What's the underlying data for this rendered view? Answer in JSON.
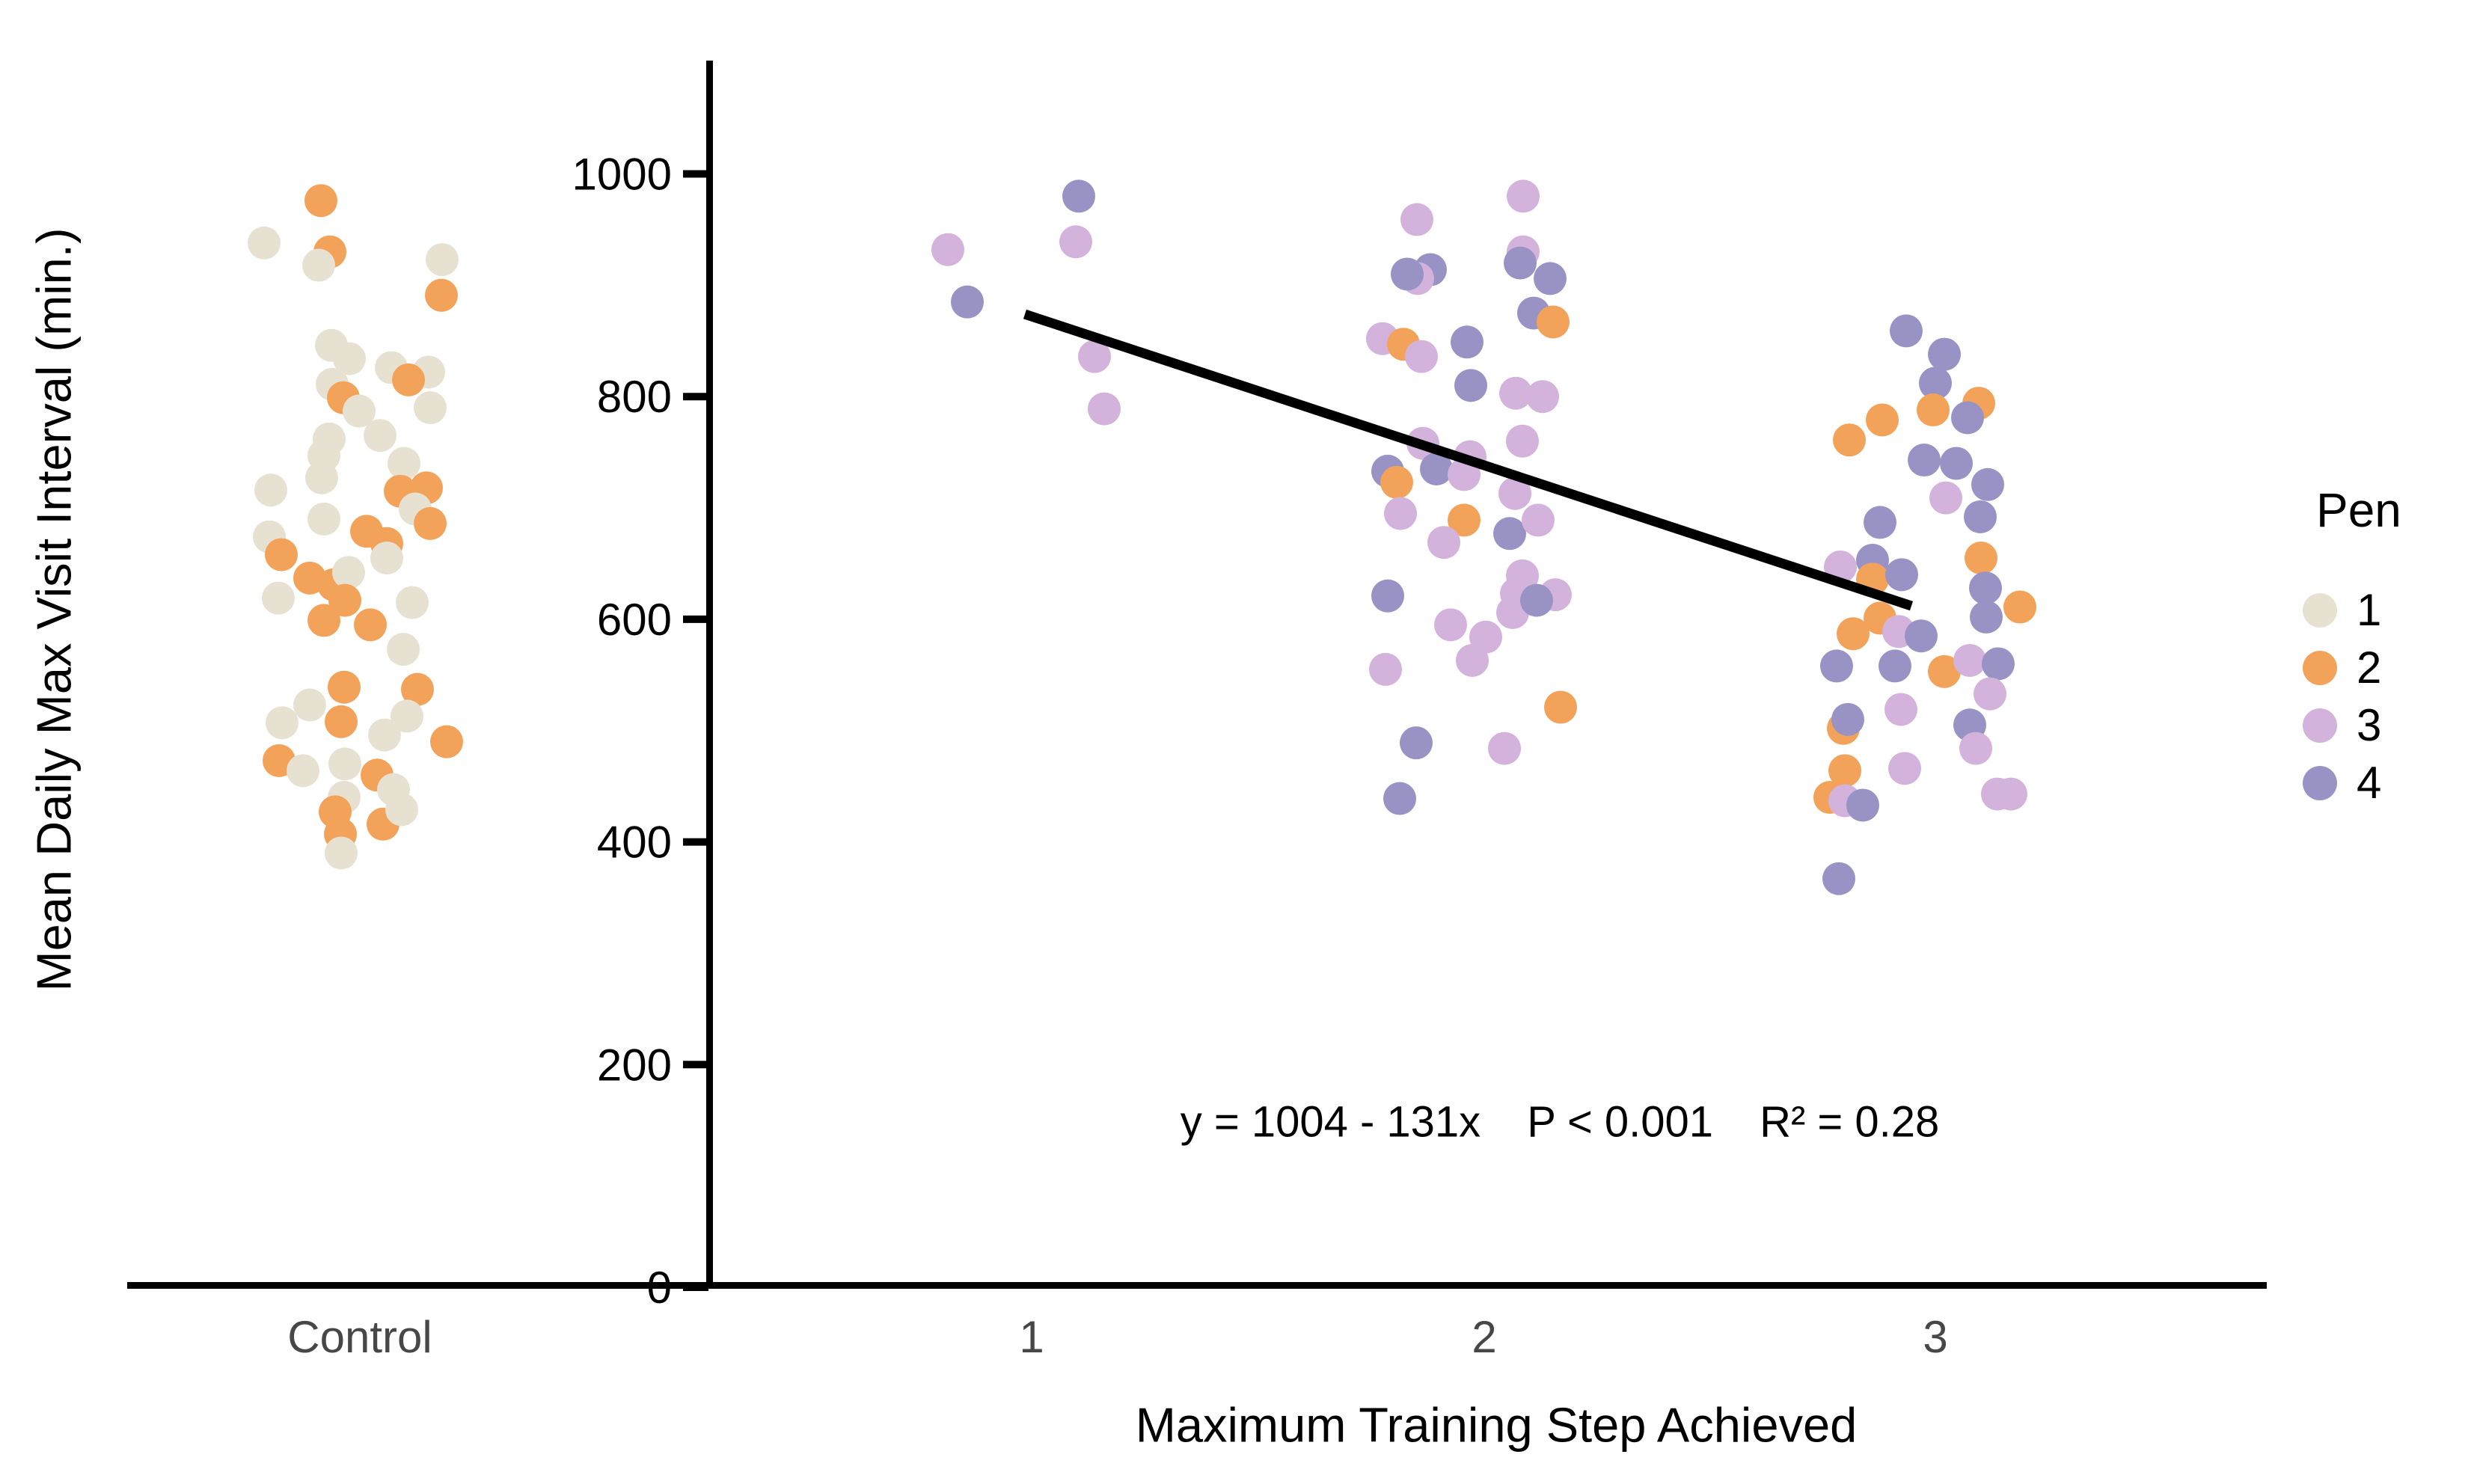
{
  "y_axis": {
    "label": "Mean Daily Max Visit Interval (min.)",
    "ticks": [
      0,
      200,
      400,
      600,
      800,
      1000
    ],
    "range": [
      0,
      1100
    ]
  },
  "x_axis": {
    "label": "Maximum Training Step Achieved",
    "categories": [
      "Control",
      "1",
      "2",
      "3"
    ]
  },
  "legend": {
    "title": "Pen",
    "entries": [
      {
        "label": "1",
        "color": "#E7E1D1"
      },
      {
        "label": "2",
        "color": "#F3A25A"
      },
      {
        "label": "3",
        "color": "#D3B2DC"
      },
      {
        "label": "4",
        "color": "#9893C4"
      }
    ]
  },
  "annotation": {
    "equation": "y = 1004 - 131x",
    "p_value": "P < 0.001",
    "r_squared": "R² = 0.28",
    "full_text": "y = 1004 - 131x   P < 0.001   R² = 0.28"
  },
  "chart_data": {
    "type": "scatter",
    "title": "",
    "xlabel": "Maximum Training Step Achieved",
    "ylabel": "Mean Daily Max Visit Interval (min.)",
    "ylim": [
      0,
      1100
    ],
    "grid": false,
    "legend_position": "right",
    "pen_colors": {
      "1": "#E7E1D1",
      "2": "#F3A25A",
      "3": "#D3B2DC",
      "4": "#9893C4"
    },
    "regression_line": {
      "x1": 0.985,
      "y1": 874,
      "x2": 2.947,
      "y2": 612,
      "color": "#000000",
      "equation": "y = 1004 - 131x",
      "p": "P < 0.001",
      "r2": 0.28
    },
    "points_format": [
      "group",
      "pen",
      "y_value_min",
      "x_offset_px"
    ],
    "points": [
      [
        "Control",
        2,
        976,
        -52
      ],
      [
        "Control",
        1,
        938,
        -128
      ],
      [
        "Control",
        2,
        930,
        -40
      ],
      [
        "Control",
        1,
        918,
        -55
      ],
      [
        "Control",
        1,
        923,
        110
      ],
      [
        "Control",
        2,
        891,
        109
      ],
      [
        "Control",
        1,
        846,
        -38
      ],
      [
        "Control",
        1,
        834,
        -14
      ],
      [
        "Control",
        1,
        826,
        42
      ],
      [
        "Control",
        1,
        822,
        92
      ],
      [
        "Control",
        2,
        815,
        65
      ],
      [
        "Control",
        1,
        811,
        -37
      ],
      [
        "Control",
        2,
        799,
        -22
      ],
      [
        "Control",
        1,
        790,
        94
      ],
      [
        "Control",
        1,
        787,
        -1
      ],
      [
        "Control",
        1,
        765,
        27
      ],
      [
        "Control",
        1,
        762,
        -41
      ],
      [
        "Control",
        1,
        747,
        -48
      ],
      [
        "Control",
        1,
        740,
        59
      ],
      [
        "Control",
        1,
        727,
        -51
      ],
      [
        "Control",
        1,
        716,
        -119
      ],
      [
        "Control",
        2,
        715,
        54
      ],
      [
        "Control",
        2,
        718,
        89
      ],
      [
        "Control",
        1,
        699,
        74
      ],
      [
        "Control",
        1,
        690,
        -48
      ],
      [
        "Control",
        1,
        674,
        -121
      ],
      [
        "Control",
        2,
        658,
        -105
      ],
      [
        "Control",
        2,
        679,
        9
      ],
      [
        "Control",
        2,
        668,
        36
      ],
      [
        "Control",
        1,
        655,
        36
      ],
      [
        "Control",
        2,
        686,
        94
      ],
      [
        "Control",
        1,
        619,
        -109
      ],
      [
        "Control",
        2,
        637,
        -67
      ],
      [
        "Control",
        2,
        631,
        -35
      ],
      [
        "Control",
        1,
        642,
        -15
      ],
      [
        "Control",
        2,
        617,
        -20
      ],
      [
        "Control",
        2,
        599,
        -48
      ],
      [
        "Control",
        2,
        595,
        14
      ],
      [
        "Control",
        1,
        615,
        70
      ],
      [
        "Control",
        1,
        573,
        58
      ],
      [
        "Control",
        2,
        539,
        -21
      ],
      [
        "Control",
        2,
        508,
        -25
      ],
      [
        "Control",
        1,
        523,
        -67
      ],
      [
        "Control",
        1,
        507,
        -104
      ],
      [
        "Control",
        2,
        537,
        77
      ],
      [
        "Control",
        1,
        513,
        63
      ],
      [
        "Control",
        1,
        496,
        33
      ],
      [
        "Control",
        2,
        490,
        116
      ],
      [
        "Control",
        2,
        473,
        -108
      ],
      [
        "Control",
        1,
        464,
        -76
      ],
      [
        "Control",
        1,
        470,
        -20
      ],
      [
        "Control",
        2,
        460,
        23
      ],
      [
        "Control",
        1,
        447,
        45
      ],
      [
        "Control",
        1,
        440,
        -21
      ],
      [
        "Control",
        2,
        427,
        -33
      ],
      [
        "Control",
        2,
        416,
        31
      ],
      [
        "Control",
        1,
        429,
        56
      ],
      [
        "Control",
        2,
        407,
        -26
      ],
      [
        "Control",
        1,
        390,
        -25
      ],
      [
        "1",
        4,
        980,
        63
      ],
      [
        "1",
        3,
        939,
        59
      ],
      [
        "1",
        3,
        932,
        -112
      ],
      [
        "1",
        4,
        885,
        -86
      ],
      [
        "1",
        3,
        836,
        84
      ],
      [
        "1",
        3,
        789,
        97
      ],
      [
        "2",
        3,
        980,
        52
      ],
      [
        "2",
        3,
        959,
        -90
      ],
      [
        "2",
        3,
        930,
        52
      ],
      [
        "2",
        4,
        920,
        48
      ],
      [
        "2",
        4,
        906,
        88
      ],
      [
        "2",
        4,
        914,
        -72
      ],
      [
        "2",
        3,
        906,
        -89
      ],
      [
        "2",
        4,
        910,
        -103
      ],
      [
        "2",
        4,
        875,
        66
      ],
      [
        "2",
        2,
        867,
        92
      ],
      [
        "2",
        3,
        852,
        -136
      ],
      [
        "2",
        2,
        847,
        -108
      ],
      [
        "2",
        3,
        836,
        -84
      ],
      [
        "2",
        4,
        849,
        -23
      ],
      [
        "2",
        4,
        810,
        -18
      ],
      [
        "2",
        3,
        803,
        42
      ],
      [
        "2",
        3,
        800,
        78
      ],
      [
        "2",
        3,
        758,
        -82
      ],
      [
        "2",
        3,
        746,
        -19
      ],
      [
        "2",
        3,
        760,
        51
      ],
      [
        "2",
        4,
        733,
        -129
      ],
      [
        "2",
        2,
        723,
        -117
      ],
      [
        "2",
        4,
        735,
        -64
      ],
      [
        "2",
        3,
        730,
        -27
      ],
      [
        "2",
        3,
        695,
        -112
      ],
      [
        "2",
        2,
        689,
        -27
      ],
      [
        "2",
        3,
        669,
        -54
      ],
      [
        "2",
        4,
        677,
        34
      ],
      [
        "2",
        3,
        689,
        72
      ],
      [
        "2",
        3,
        713,
        41
      ],
      [
        "2",
        3,
        595,
        -45
      ],
      [
        "2",
        4,
        621,
        -129
      ],
      [
        "2",
        3,
        639,
        51
      ],
      [
        "2",
        3,
        623,
        43
      ],
      [
        "2",
        3,
        606,
        38
      ],
      [
        "2",
        3,
        622,
        95
      ],
      [
        "2",
        4,
        617,
        70
      ],
      [
        "2",
        3,
        584,
        2
      ],
      [
        "2",
        3,
        563,
        -16
      ],
      [
        "2",
        3,
        555,
        -132
      ],
      [
        "2",
        2,
        521,
        102
      ],
      [
        "2",
        4,
        489,
        -91
      ],
      [
        "2",
        3,
        484,
        27
      ],
      [
        "2",
        4,
        439,
        -113
      ],
      [
        "3",
        4,
        859,
        -39
      ],
      [
        "3",
        4,
        838,
        12
      ],
      [
        "3",
        4,
        812,
        0
      ],
      [
        "3",
        2,
        794,
        58
      ],
      [
        "3",
        2,
        788,
        -3
      ],
      [
        "3",
        4,
        781,
        43
      ],
      [
        "3",
        2,
        779,
        -71
      ],
      [
        "3",
        2,
        761,
        -115
      ],
      [
        "3",
        4,
        743,
        -15
      ],
      [
        "3",
        4,
        740,
        28
      ],
      [
        "3",
        4,
        721,
        70
      ],
      [
        "3",
        3,
        709,
        14
      ],
      [
        "3",
        4,
        692,
        60
      ],
      [
        "3",
        4,
        687,
        -74
      ],
      [
        "3",
        3,
        647,
        -127
      ],
      [
        "3",
        4,
        653,
        -84
      ],
      [
        "3",
        2,
        636,
        -84
      ],
      [
        "3",
        4,
        640,
        -45
      ],
      [
        "3",
        2,
        655,
        61
      ],
      [
        "3",
        4,
        628,
        67
      ],
      [
        "3",
        2,
        611,
        113
      ],
      [
        "3",
        4,
        602,
        68
      ],
      [
        "3",
        2,
        601,
        -74
      ],
      [
        "3",
        2,
        587,
        -110
      ],
      [
        "3",
        3,
        589,
        -49
      ],
      [
        "3",
        4,
        585,
        -19
      ],
      [
        "3",
        2,
        553,
        12
      ],
      [
        "3",
        3,
        563,
        46
      ],
      [
        "3",
        4,
        560,
        84
      ],
      [
        "3",
        4,
        558,
        -132
      ],
      [
        "3",
        4,
        558,
        -54
      ],
      [
        "3",
        3,
        533,
        73
      ],
      [
        "3",
        3,
        519,
        -46
      ],
      [
        "3",
        2,
        502,
        -123
      ],
      [
        "3",
        4,
        510,
        -117
      ],
      [
        "3",
        4,
        505,
        46
      ],
      [
        "3",
        3,
        484,
        54
      ],
      [
        "3",
        3,
        466,
        -41
      ],
      [
        "3",
        2,
        464,
        -121
      ],
      [
        "3",
        2,
        440,
        -141
      ],
      [
        "3",
        3,
        437,
        -121
      ],
      [
        "3",
        4,
        433,
        -97
      ],
      [
        "3",
        3,
        443,
        83
      ],
      [
        "3",
        3,
        443,
        101
      ],
      [
        "3",
        4,
        367,
        -129
      ]
    ]
  }
}
